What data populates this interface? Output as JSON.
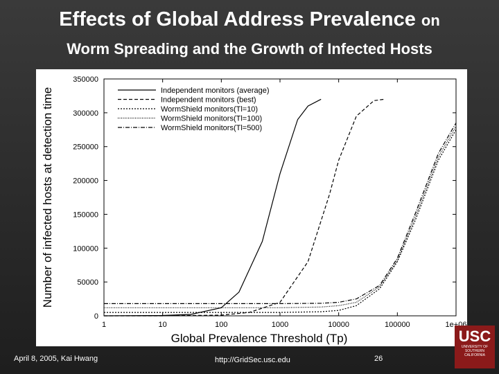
{
  "slide": {
    "title_main": "Effects of Global Address Prevalence",
    "title_suffix": "on",
    "subtitle": "Worm Spreading and the Growth of Infected Hosts",
    "footer_date": "April 8, 2005,  Kai Hwang",
    "footer_url": "http://GridSec.usc.edu",
    "footer_page": "26",
    "logo_big": "USC",
    "logo_small": "UNIVERSITY OF SOUTHERN CALIFORNIA"
  },
  "chart_data": {
    "type": "line",
    "xlabel": "Global Prevalence Threshold (Tp)",
    "ylabel": "Number of infected hosts at detection time",
    "x_scale": "log",
    "xlim": [
      1,
      1000000
    ],
    "ylim": [
      0,
      350000
    ],
    "x_ticks": [
      1,
      10,
      100,
      1000,
      10000,
      100000,
      1000000
    ],
    "x_tick_labels": [
      "1",
      "10",
      "100",
      "1000",
      "10000",
      "100000",
      "1e+06"
    ],
    "y_ticks": [
      0,
      50000,
      100000,
      150000,
      200000,
      250000,
      300000,
      350000
    ],
    "y_tick_labels": [
      "0",
      "50000",
      "100000",
      "150000",
      "200000",
      "250000",
      "300000",
      "350000"
    ],
    "legend_position": "top-left",
    "series": [
      {
        "name": "Independent monitors (average)",
        "dash": "solid",
        "x": [
          1,
          10,
          30,
          100,
          200,
          500,
          1000,
          2000,
          3000,
          5000
        ],
        "y": [
          0,
          500,
          2000,
          12000,
          35000,
          110000,
          210000,
          290000,
          310000,
          320000
        ]
      },
      {
        "name": "Independent monitors (best)",
        "dash": "dashed",
        "x": [
          1,
          10,
          100,
          300,
          1000,
          3000,
          7000,
          10000,
          20000,
          40000,
          60000
        ],
        "y": [
          0,
          0,
          1000,
          5000,
          20000,
          80000,
          180000,
          230000,
          295000,
          318000,
          320000
        ]
      },
      {
        "name": "WormShield monitors(Tl=10)",
        "dash": "dotted",
        "x": [
          1,
          1000,
          5000,
          10000,
          20000,
          50000,
          100000,
          200000,
          500000,
          1000000
        ],
        "y": [
          5000,
          5000,
          6000,
          8000,
          15000,
          40000,
          80000,
          140000,
          230000,
          275000
        ]
      },
      {
        "name": "WormShield monitors(Tl=100)",
        "dash": "dense-dotted",
        "x": [
          1,
          1000,
          5000,
          10000,
          20000,
          50000,
          100000,
          200000,
          500000,
          1000000
        ],
        "y": [
          12000,
          12000,
          13000,
          15000,
          20000,
          43000,
          82000,
          145000,
          235000,
          280000
        ]
      },
      {
        "name": "WormShield monitors(Tl=500)",
        "dash": "dash-dot",
        "x": [
          1,
          1000,
          5000,
          10000,
          20000,
          50000,
          100000,
          200000,
          500000,
          1000000
        ],
        "y": [
          18000,
          18000,
          18500,
          20000,
          25000,
          45000,
          85000,
          150000,
          240000,
          285000
        ]
      }
    ]
  }
}
